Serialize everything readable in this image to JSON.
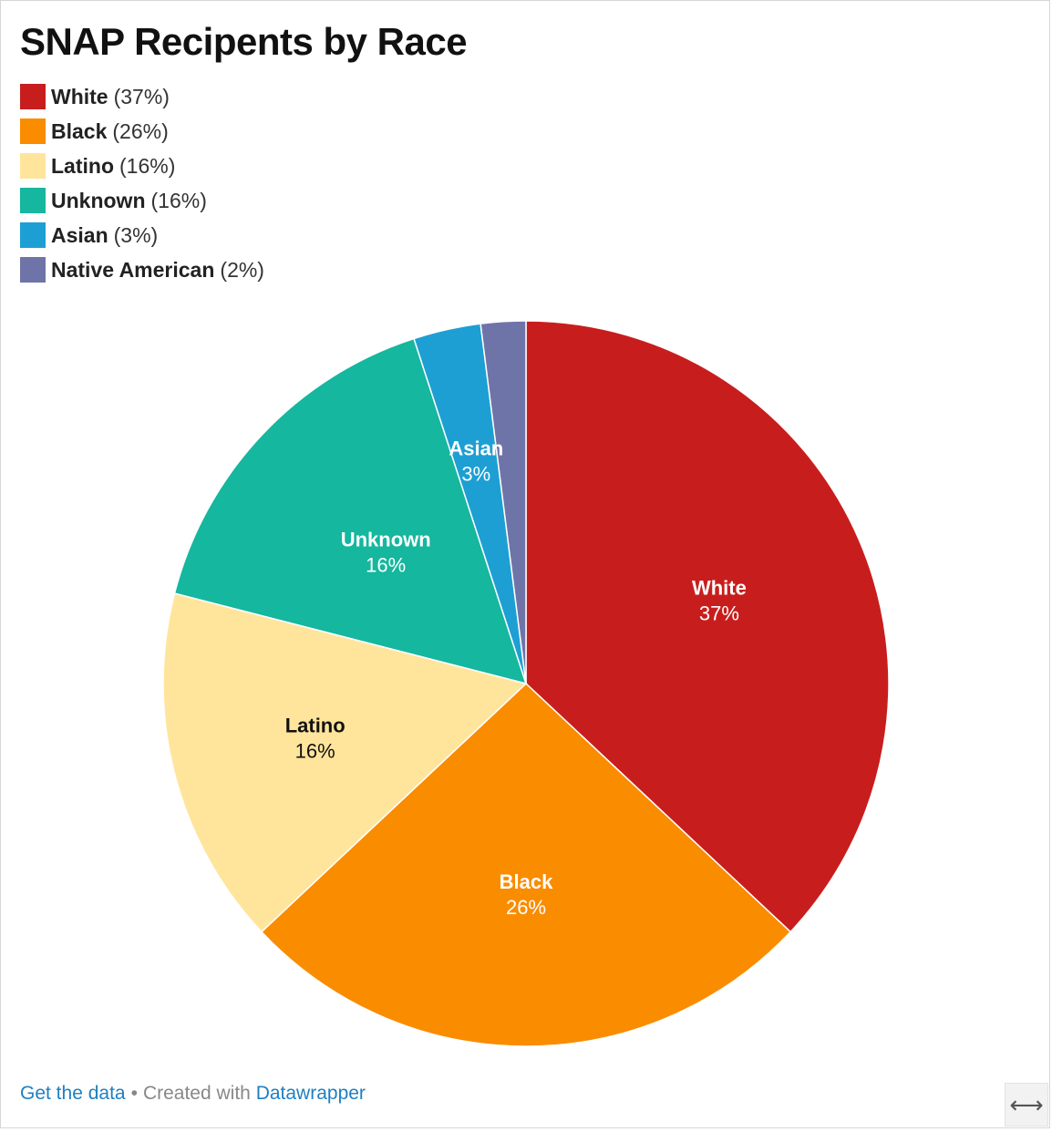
{
  "header": {
    "title": "SNAP Recipents by Race"
  },
  "chart_data": {
    "type": "pie",
    "title": "SNAP Recipents by Race",
    "legend_position": "top-left",
    "slices": [
      {
        "name": "White",
        "value": 37,
        "label": "37%",
        "color": "#c71e1d",
        "text_color": "#ffffff"
      },
      {
        "name": "Black",
        "value": 26,
        "label": "26%",
        "color": "#fa8c00",
        "text_color": "#ffffff"
      },
      {
        "name": "Latino",
        "value": 16,
        "label": "16%",
        "color": "#ffe59c",
        "text_color": "#111111"
      },
      {
        "name": "Unknown",
        "value": 16,
        "label": "16%",
        "color": "#15b79e",
        "text_color": "#ffffff"
      },
      {
        "name": "Asian",
        "value": 3,
        "label": "3%",
        "color": "#1d9fd4",
        "text_color": "#ffffff"
      },
      {
        "name": "Native American",
        "value": 2,
        "label": "2%",
        "color": "#6f74a8",
        "text_color": "#ffffff"
      }
    ]
  },
  "legend": {
    "items": [
      {
        "name": "White",
        "pct": "(37%)",
        "color": "#c71e1d"
      },
      {
        "name": "Black",
        "pct": "(26%)",
        "color": "#fa8c00"
      },
      {
        "name": "Latino",
        "pct": "(16%)",
        "color": "#ffe59c"
      },
      {
        "name": "Unknown",
        "pct": "(16%)",
        "color": "#15b79e"
      },
      {
        "name": "Asian",
        "pct": "(3%)",
        "color": "#1d9fd4"
      },
      {
        "name": "Native American",
        "pct": "(2%)",
        "color": "#6f74a8"
      }
    ]
  },
  "footer": {
    "get_data": "Get the data",
    "separator": "•",
    "created_with": "Created with",
    "tool": "Datawrapper"
  },
  "controls": {
    "resize_icon": "resize-horizontal-icon",
    "resize_glyph": "⟷"
  }
}
